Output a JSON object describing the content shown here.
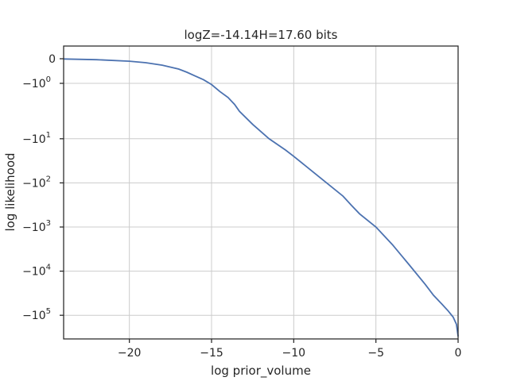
{
  "chart_data": {
    "type": "line",
    "title": "logZ=-14.14H=17.60 bits",
    "xlabel": "log prior_volume",
    "ylabel": "log likelihood",
    "xlim": [
      -24,
      0
    ],
    "yscale": "symlog",
    "grid": true,
    "x_ticks": [
      {
        "value": -20,
        "label": "−20"
      },
      {
        "value": -15,
        "label": "−15"
      },
      {
        "value": -10,
        "label": "−10"
      },
      {
        "value": -5,
        "label": "−5"
      },
      {
        "value": 0,
        "label": "0"
      }
    ],
    "y_ticks": [
      {
        "value": 0,
        "label": "0"
      },
      {
        "value": -1,
        "label": "−10",
        "exp": "0"
      },
      {
        "value": -10,
        "label": "−10",
        "exp": "1"
      },
      {
        "value": -100,
        "label": "−10",
        "exp": "2"
      },
      {
        "value": -1000,
        "label": "−10",
        "exp": "3"
      },
      {
        "value": -10000,
        "label": "−10",
        "exp": "4"
      },
      {
        "value": -100000,
        "label": "−10",
        "exp": "5"
      }
    ],
    "series": [
      {
        "color": "#4c72b0",
        "x": [
          -24,
          -22,
          -20,
          -19,
          -18,
          -17,
          -16.5,
          -16,
          -15.5,
          -15,
          -14.5,
          -14,
          -13.6,
          -13.3,
          -12.5,
          -11.5,
          -10.5,
          -10,
          -9,
          -8,
          -7,
          -6.5,
          -6,
          -5,
          -4,
          -3,
          -2,
          -1.5,
          -1,
          -0.6,
          -0.3,
          -0.1,
          0
        ],
        "y": [
          -0.01,
          -0.04,
          -0.1,
          -0.16,
          -0.26,
          -0.42,
          -0.55,
          -0.7,
          -0.85,
          -1.05,
          -1.4,
          -1.8,
          -2.4,
          -3.2,
          -5.5,
          -10,
          -18,
          -25,
          -50,
          -100,
          -200,
          -320,
          -500,
          -1000,
          -2500,
          -7000,
          -20000,
          -35000,
          -55000,
          -80000,
          -110000,
          -160000,
          -300000
        ]
      }
    ]
  }
}
